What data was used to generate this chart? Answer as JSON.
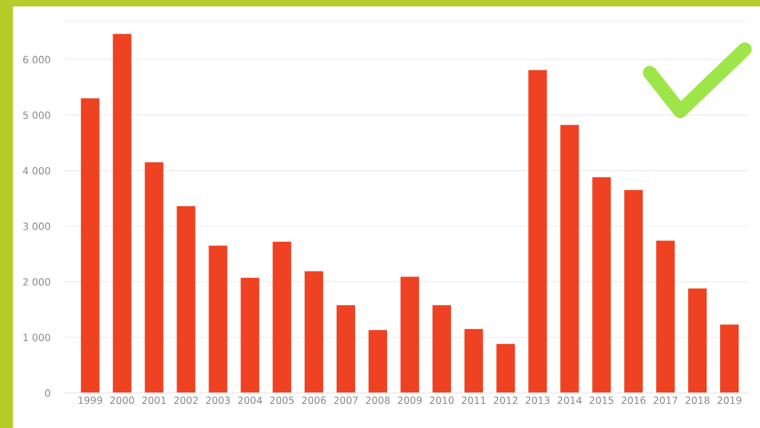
{
  "chart_data": {
    "type": "bar",
    "categories": [
      "1999",
      "2000",
      "2001",
      "2002",
      "2003",
      "2004",
      "2005",
      "2006",
      "2007",
      "2008",
      "2009",
      "2010",
      "2011",
      "2012",
      "2013",
      "2014",
      "2015",
      "2016",
      "2017",
      "2018",
      "2019"
    ],
    "values": [
      5300,
      6460,
      4150,
      3360,
      2650,
      2070,
      2720,
      2190,
      1580,
      1130,
      2090,
      1580,
      1150,
      880,
      5810,
      4820,
      3880,
      3650,
      2740,
      1880,
      1230
    ],
    "color": "#ee4223",
    "ylim": [
      0,
      6700
    ],
    "yticks": [
      0,
      {
        "value": 1000,
        "label": "1 000"
      },
      {
        "value": 2000,
        "label": "2 000"
      },
      {
        "value": 3000,
        "label": "3 000"
      },
      {
        "value": 4000,
        "label": "4 000"
      },
      {
        "value": 5000,
        "label": "5 000"
      },
      {
        "value": 6000,
        "label": "6 000"
      }
    ],
    "grid": "y"
  }
}
